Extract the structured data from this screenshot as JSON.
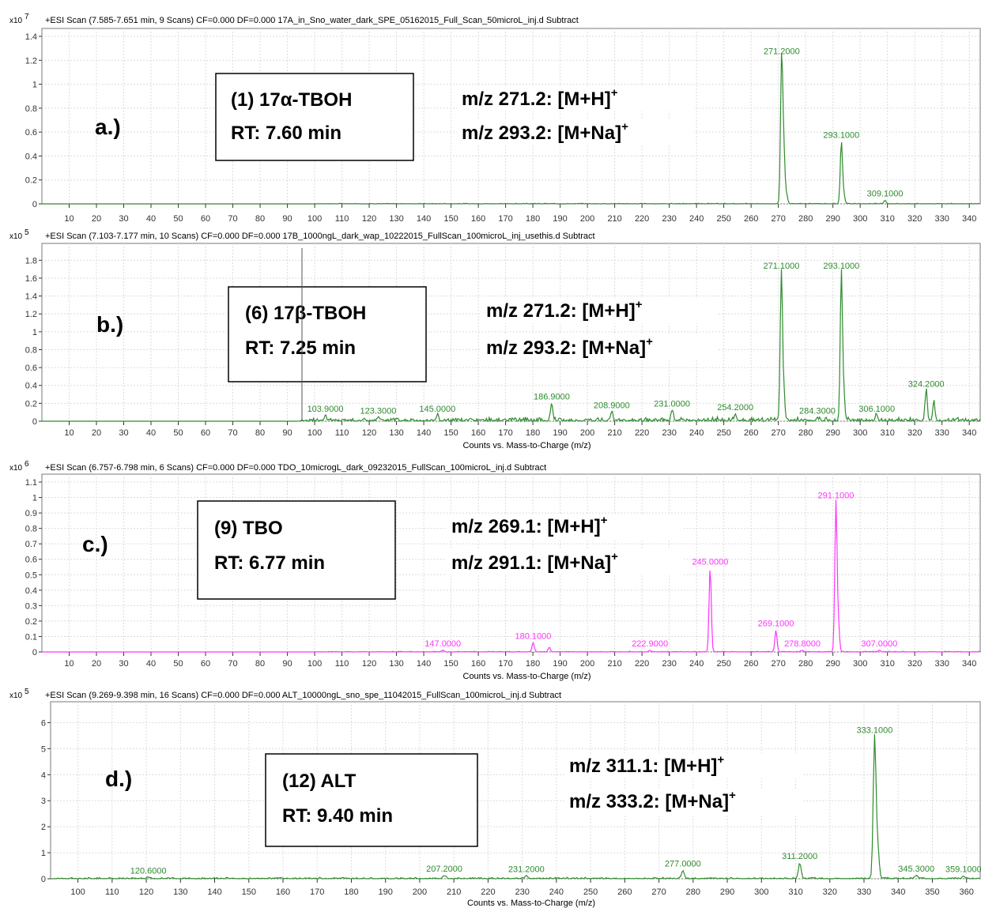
{
  "colors": {
    "green": "#2e8b2e",
    "magenta": "#ff33ff",
    "frame": "#7a7a7a",
    "text": "#000000"
  },
  "chart_data": [
    {
      "type": "line",
      "panel_label": "a.)",
      "header": "+ESI Scan (7.585-7.651 min, 9 Scans) CF=0.000 DF=0.000 17A_in_Sno_water_dark_SPE_05162015_Full_Scan_50microL_inj.d  Subtract",
      "multiplier": "x10",
      "exponent": "7",
      "xlabel": "",
      "color": "#2e8b2e",
      "xlim": [
        0,
        344
      ],
      "ylim": [
        0,
        1.4
      ],
      "yticks": [
        "0",
        "0.2",
        "0.4",
        "0.6",
        "0.8",
        "1",
        "1.2",
        "1.4"
      ],
      "xticks": [
        "10",
        "20",
        "30",
        "40",
        "50",
        "60",
        "70",
        "80",
        "90",
        "100",
        "110",
        "120",
        "130",
        "140",
        "150",
        "160",
        "170",
        "180",
        "190",
        "200",
        "210",
        "220",
        "230",
        "240",
        "250",
        "260",
        "270",
        "280",
        "290",
        "300",
        "310",
        "320",
        "330",
        "340"
      ],
      "baseline_start": 100,
      "noise": 0.006,
      "peaks": [
        {
          "x": 271.2,
          "y": 1.22,
          "label": "271.2000"
        },
        {
          "x": 272.0,
          "y": 0.44,
          "label": ""
        },
        {
          "x": 273.0,
          "y": 0.08,
          "label": ""
        },
        {
          "x": 293.1,
          "y": 0.52,
          "label": "293.1000"
        },
        {
          "x": 294.0,
          "y": 0.08,
          "label": ""
        },
        {
          "x": 309.1,
          "y": 0.03,
          "label": "309.1000"
        }
      ],
      "compound_lines": [
        "(1) 17α-TBOH",
        "RT: 7.60 min"
      ],
      "ion_lines": [
        {
          "text": "m/z  271.2: [M+H]",
          "sup": "+"
        },
        {
          "text": "m/z  293.2: [M+Na]",
          "sup": "+"
        }
      ]
    },
    {
      "type": "line",
      "panel_label": "b.)",
      "header": "+ESI Scan (7.103-7.177 min, 10 Scans) CF=0.000 DF=0.000 17B_1000ngL_dark_wap_10222015_FullScan_100microL_inj_usethis.d  Subtract",
      "multiplier": "x10",
      "exponent": "5",
      "xlabel": "Counts vs. Mass-to-Charge (m/z)",
      "color": "#2e8b2e",
      "xlim": [
        0,
        344
      ],
      "ylim": [
        0,
        1.9
      ],
      "yticks": [
        "0",
        "0.2",
        "0.4",
        "0.6",
        "0.8",
        "1",
        "1.2",
        "1.4",
        "1.6",
        "1.8"
      ],
      "xticks": [
        "10",
        "20",
        "30",
        "40",
        "50",
        "60",
        "70",
        "80",
        "90",
        "100",
        "110",
        "120",
        "130",
        "140",
        "150",
        "160",
        "170",
        "180",
        "190",
        "200",
        "210",
        "220",
        "230",
        "240",
        "250",
        "260",
        "270",
        "280",
        "290",
        "300",
        "310",
        "320",
        "330",
        "340"
      ],
      "baseline_start": 94,
      "noise": 0.05,
      "peaks": [
        {
          "x": 103.9,
          "y": 0.06,
          "label": "103.9000"
        },
        {
          "x": 123.3,
          "y": 0.04,
          "label": "123.3000"
        },
        {
          "x": 145.0,
          "y": 0.06,
          "label": "145.0000"
        },
        {
          "x": 186.9,
          "y": 0.2,
          "label": "186.9000"
        },
        {
          "x": 208.9,
          "y": 0.1,
          "label": "208.9000"
        },
        {
          "x": 231.0,
          "y": 0.12,
          "label": "231.0000"
        },
        {
          "x": 254.2,
          "y": 0.08,
          "label": "254.2000"
        },
        {
          "x": 271.1,
          "y": 1.66,
          "label": "271.1000"
        },
        {
          "x": 272.0,
          "y": 0.3,
          "label": ""
        },
        {
          "x": 284.3,
          "y": 0.04,
          "label": "284.3000"
        },
        {
          "x": 293.1,
          "y": 1.66,
          "label": "293.1000"
        },
        {
          "x": 294.0,
          "y": 0.28,
          "label": ""
        },
        {
          "x": 306.1,
          "y": 0.06,
          "label": "306.1000"
        },
        {
          "x": 324.2,
          "y": 0.34,
          "label": "324.2000"
        },
        {
          "x": 327.0,
          "y": 0.22,
          "label": ""
        }
      ],
      "compound_lines": [
        "(6) 17β-TBOH",
        "RT: 7.25 min"
      ],
      "ion_lines": [
        {
          "text": "m/z  271.2: [M+H]",
          "sup": "+"
        },
        {
          "text": "m/z  293.2: [M+Na]",
          "sup": "+"
        }
      ]
    },
    {
      "type": "line",
      "panel_label": "c.)",
      "header": "+ESI Scan (6.757-6.798 min, 6 Scans) CF=0.000 DF=0.000 TDO_10microgL_dark_09232015_FullScan_100microL_inj.d  Subtract",
      "multiplier": "x10",
      "exponent": "6",
      "xlabel": "Counts vs. Mass-to-Charge (m/z)",
      "color": "#ff33ff",
      "xlim": [
        0,
        344
      ],
      "ylim": [
        0,
        1.1
      ],
      "yticks": [
        "0",
        "0.1",
        "0.2",
        "0.3",
        "0.4",
        "0.5",
        "0.6",
        "0.7",
        "0.8",
        "0.9",
        "1",
        "1.1"
      ],
      "xticks": [
        "10",
        "20",
        "30",
        "40",
        "50",
        "60",
        "70",
        "80",
        "90",
        "100",
        "110",
        "120",
        "130",
        "140",
        "150",
        "160",
        "170",
        "180",
        "190",
        "200",
        "210",
        "220",
        "230",
        "240",
        "250",
        "260",
        "270",
        "280",
        "290",
        "300",
        "310",
        "320",
        "330",
        "340"
      ],
      "baseline_start": 100,
      "noise": 0.005,
      "peaks": [
        {
          "x": 147.0,
          "y": 0.01,
          "label": "147.0000"
        },
        {
          "x": 180.1,
          "y": 0.06,
          "label": "180.1000"
        },
        {
          "x": 186.0,
          "y": 0.03,
          "label": ""
        },
        {
          "x": 222.9,
          "y": 0.01,
          "label": "222.9000"
        },
        {
          "x": 245.0,
          "y": 0.54,
          "label": "245.0000"
        },
        {
          "x": 269.1,
          "y": 0.14,
          "label": "269.1000"
        },
        {
          "x": 278.8,
          "y": 0.01,
          "label": "278.8000"
        },
        {
          "x": 291.1,
          "y": 0.97,
          "label": "291.1000"
        },
        {
          "x": 292.0,
          "y": 0.18,
          "label": ""
        },
        {
          "x": 307.0,
          "y": 0.01,
          "label": "307.0000"
        }
      ],
      "compound_lines": [
        "(9) TBO",
        "RT: 6.77 min"
      ],
      "ion_lines": [
        {
          "text": "m/z  269.1: [M+H]",
          "sup": "+"
        },
        {
          "text": "m/z  291.1: [M+Na]",
          "sup": "+"
        }
      ]
    },
    {
      "type": "line",
      "panel_label": "d.)",
      "header": "+ESI Scan (9.269-9.398 min, 16 Scans) CF=0.000 DF=0.000 ALT_10000ngL_sno_spe_11042015_FullScan_100microL_inj.d  Subtract",
      "multiplier": "x10",
      "exponent": "5",
      "xlabel": "Counts vs. Mass-to-Charge (m/z)",
      "color": "#2e8b2e",
      "xlim": [
        92,
        364
      ],
      "ylim": [
        0,
        6.5
      ],
      "yticks": [
        "0",
        "1",
        "2",
        "3",
        "4",
        "5",
        "6"
      ],
      "xticks": [
        "100",
        "110",
        "120",
        "130",
        "140",
        "150",
        "160",
        "170",
        "180",
        "190",
        "200",
        "210",
        "220",
        "230",
        "240",
        "250",
        "260",
        "270",
        "280",
        "290",
        "300",
        "310",
        "320",
        "330",
        "340",
        "350",
        "360"
      ],
      "baseline_start": 93,
      "noise": 0.06,
      "peaks": [
        {
          "x": 120.6,
          "y": 0.05,
          "label": "120.6000"
        },
        {
          "x": 207.2,
          "y": 0.12,
          "label": "207.2000"
        },
        {
          "x": 231.2,
          "y": 0.1,
          "label": "231.2000"
        },
        {
          "x": 277.0,
          "y": 0.32,
          "label": "277.0000"
        },
        {
          "x": 311.2,
          "y": 0.6,
          "label": "311.2000"
        },
        {
          "x": 333.1,
          "y": 5.45,
          "label": "333.1000"
        },
        {
          "x": 334.0,
          "y": 1.2,
          "label": ""
        },
        {
          "x": 345.3,
          "y": 0.12,
          "label": "345.3000"
        },
        {
          "x": 359.1,
          "y": 0.1,
          "label": "359.1000"
        }
      ],
      "compound_lines": [
        "(12) ALT",
        "RT: 9.40 min"
      ],
      "ion_lines": [
        {
          "text": "m/z  311.1: [M+H]",
          "sup": "+"
        },
        {
          "text": "m/z  333.2: [M+Na]",
          "sup": "+"
        }
      ]
    }
  ]
}
